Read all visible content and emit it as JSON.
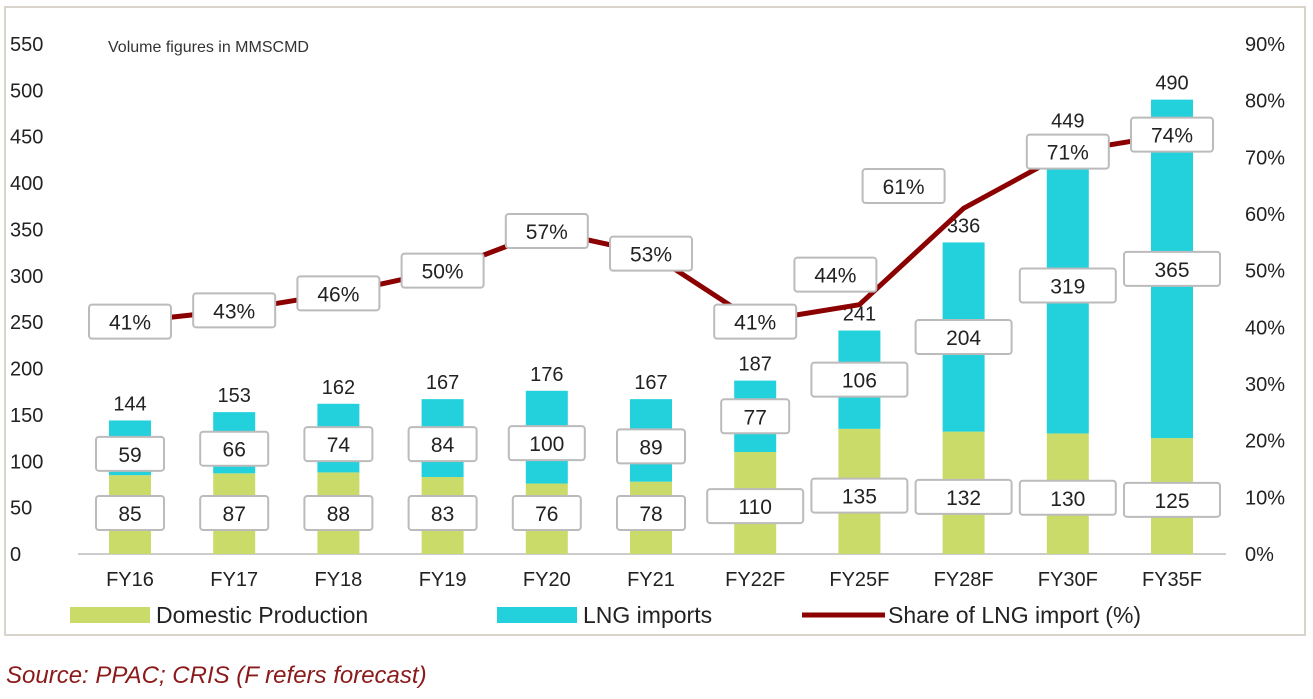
{
  "chart_data": {
    "type": "bar",
    "stacked": true,
    "annotation": "Volume figures in MMSCMD",
    "categories": [
      "FY16",
      "FY17",
      "FY18",
      "FY19",
      "FY20",
      "FY21",
      "FY22F",
      "FY25F",
      "FY28F",
      "FY30F",
      "FY35F"
    ],
    "series": [
      {
        "name": "Domestic Production",
        "type": "bar",
        "color": "#cbdb6a",
        "values": [
          85,
          87,
          88,
          83,
          76,
          78,
          110,
          135,
          132,
          130,
          125
        ]
      },
      {
        "name": "LNG imports",
        "type": "bar",
        "color": "#22d1dc",
        "values": [
          59,
          66,
          74,
          84,
          100,
          89,
          77,
          106,
          204,
          319,
          365
        ]
      },
      {
        "name": "Share of LNG import (%)",
        "type": "line",
        "axis": "right",
        "color": "#8b0000",
        "values": [
          41,
          43,
          46,
          50,
          57,
          53,
          41,
          44,
          61,
          71,
          74
        ]
      }
    ],
    "totals": [
      144,
      153,
      162,
      167,
      176,
      167,
      187,
      241,
      336,
      449,
      490
    ],
    "ylim": [
      0,
      550
    ],
    "yticks": [
      "0",
      "50",
      "100",
      "150",
      "200",
      "250",
      "300",
      "350",
      "400",
      "450",
      "500",
      "550"
    ],
    "y2lim": [
      0,
      90
    ],
    "y2ticks": [
      "0%",
      "10%",
      "20%",
      "30%",
      "40%",
      "50%",
      "60%",
      "70%",
      "80%",
      "90%"
    ],
    "legend_position": "bottom",
    "grid": false
  },
  "source": "Source: PPAC; CRIS (F refers forecast)"
}
